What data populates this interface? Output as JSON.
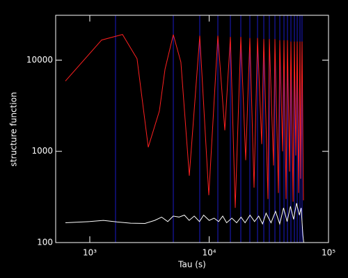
{
  "chart_data": {
    "type": "line",
    "xlabel": "Tau (s)",
    "ylabel": "structure function",
    "xscale": "log",
    "yscale": "log",
    "xlim": [
      518,
      100000
    ],
    "ylim": [
      100,
      31000
    ],
    "xticks": [
      {
        "value": 1000,
        "label": "10³"
      },
      {
        "value": 10000,
        "label": "10⁴"
      },
      {
        "value": 100000,
        "label": "10⁵"
      }
    ],
    "yticks": [
      100,
      1000,
      10000
    ],
    "vlines": {
      "color": "#1c1cc8",
      "x": [
        1643,
        5010,
        8340,
        11830,
        15060,
        18420,
        21930,
        25430,
        28700,
        31940,
        35570,
        39080,
        42360,
        45290,
        48430,
        51790,
        54670,
        57670,
        60000
      ]
    },
    "series": [
      {
        "color": "#ff2020",
        "x": [
          625,
          1257,
          1880,
          2490,
          3090,
          3830,
          4270,
          5010,
          5800,
          6820,
          8340,
          9930,
          11830,
          13530,
          15060,
          16550,
          18420,
          20230,
          21930,
          23770,
          25430,
          27560,
          28700,
          31100,
          31940,
          34620,
          35570,
          38020,
          39080,
          41210,
          42360,
          44060,
          45290,
          47120,
          48430,
          50470,
          51790,
          53210,
          54670,
          56110,
          57670,
          58480,
          60000,
          61660
        ],
        "values": [
          5900,
          16600,
          19100,
          10350,
          1110,
          2770,
          7960,
          19000,
          9500,
          540,
          18500,
          330,
          18500,
          1700,
          18000,
          240,
          18000,
          800,
          17500,
          400,
          17500,
          1200,
          17000,
          300,
          17000,
          700,
          17000,
          350,
          16500,
          1000,
          16500,
          300,
          16500,
          600,
          16000,
          280,
          16000,
          900,
          16000,
          350,
          16000,
          500,
          16000,
          290
        ]
      },
      {
        "color": "#ffffff",
        "x": [
          625,
          1000,
          1300,
          1700,
          2200,
          2900,
          3500,
          4000,
          4500,
          5000,
          5600,
          6200,
          6800,
          7500,
          8300,
          9000,
          10000,
          11000,
          12000,
          13000,
          14000,
          15500,
          17000,
          18500,
          20000,
          22000,
          24000,
          26000,
          28000,
          30000,
          33000,
          36000,
          39000,
          42000,
          45000,
          48000,
          51000,
          54000,
          57000,
          59000,
          61000,
          62000
        ],
        "values": [
          165,
          170,
          175,
          168,
          163,
          162,
          175,
          190,
          170,
          195,
          190,
          200,
          175,
          195,
          170,
          200,
          175,
          185,
          170,
          195,
          165,
          185,
          165,
          190,
          165,
          200,
          170,
          195,
          160,
          210,
          165,
          220,
          160,
          240,
          170,
          250,
          180,
          270,
          200,
          240,
          120,
          100
        ]
      }
    ]
  }
}
